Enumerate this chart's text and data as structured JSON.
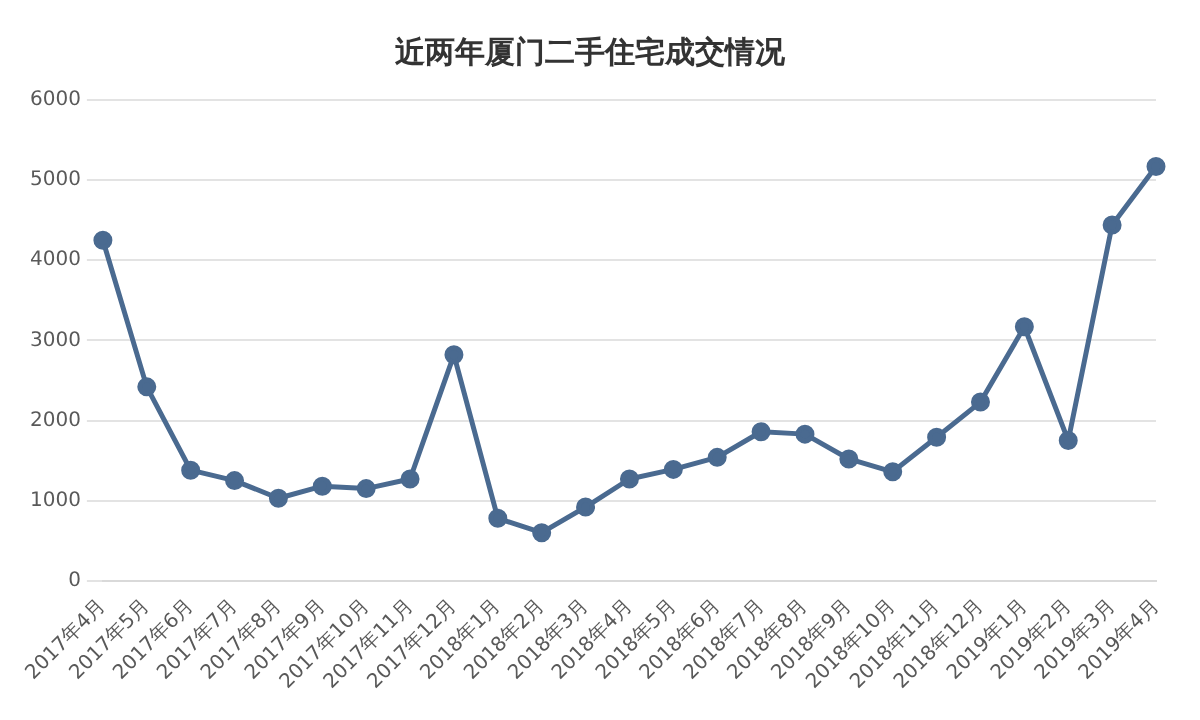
{
  "chart_data": {
    "type": "line",
    "title": "近两年厦门二手住宅成交情况",
    "categories": [
      "2017年4月",
      "2017年5月",
      "2017年6月",
      "2017年7月",
      "2017年8月",
      "2017年9月",
      "2017年10月",
      "2017年11月",
      "2017年12月",
      "2018年1月",
      "2018年2月",
      "2018年3月",
      "2018年4月",
      "2018年5月",
      "2018年6月",
      "2018年7月",
      "2018年8月",
      "2018年9月",
      "2018年10月",
      "2018年11月",
      "2018年12月",
      "2019年1月",
      "2019年2月",
      "2019年3月",
      "2019年4月"
    ],
    "series": [
      {
        "color": "#4a6a90",
        "values": [
          4250,
          2420,
          1380,
          1250,
          1030,
          1180,
          1150,
          1270,
          2820,
          780,
          600,
          920,
          1270,
          1390,
          1540,
          1860,
          1830,
          1520,
          1360,
          1790,
          2230,
          3170,
          1750,
          4440,
          5170
        ]
      }
    ],
    "ylim": [
      0,
      6000
    ],
    "yticks": [
      0,
      1000,
      2000,
      3000,
      4000,
      5000,
      6000
    ],
    "grid": "y",
    "legend": false,
    "marker": "circle",
    "line_style": "solid"
  }
}
